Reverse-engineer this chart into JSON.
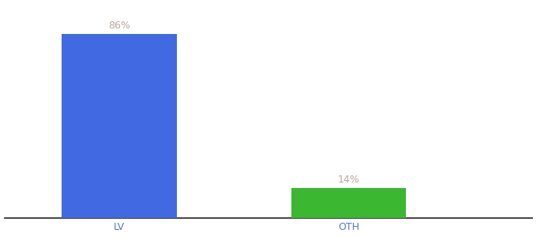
{
  "categories": [
    "LV",
    "OTH"
  ],
  "values": [
    86,
    14
  ],
  "bar_colors": [
    "#4169e1",
    "#3cb731"
  ],
  "labels": [
    "86%",
    "14%"
  ],
  "ylim": [
    0,
    100
  ],
  "background_color": "#ffffff",
  "bar_width": 0.5,
  "figsize": [
    6.8,
    3.0
  ],
  "dpi": 100,
  "label_fontsize": 9,
  "tick_fontsize": 9,
  "tick_color": "#5577cc",
  "label_color": "#b8a898",
  "x_positions": [
    1,
    2
  ],
  "xlim": [
    0.5,
    2.8
  ]
}
